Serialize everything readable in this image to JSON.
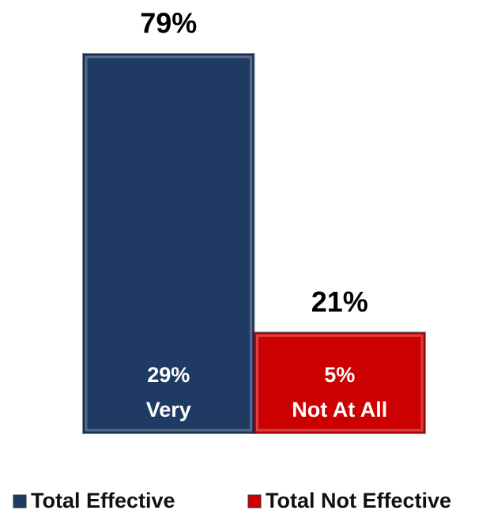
{
  "chart_data": {
    "type": "bar",
    "series": [
      {
        "name": "Total Effective",
        "color": "#1f3a63",
        "values": [
          79
        ],
        "value_labels": [
          "79%"
        ],
        "inner_value": 29,
        "inner_label": "29%",
        "inner_text": "Very"
      },
      {
        "name": "Total Not Effective",
        "color": "#cc0000",
        "values": [
          21
        ],
        "value_labels": [
          "21%"
        ],
        "inner_value": 5,
        "inner_label": "5%",
        "inner_text": "Not At All"
      }
    ]
  }
}
